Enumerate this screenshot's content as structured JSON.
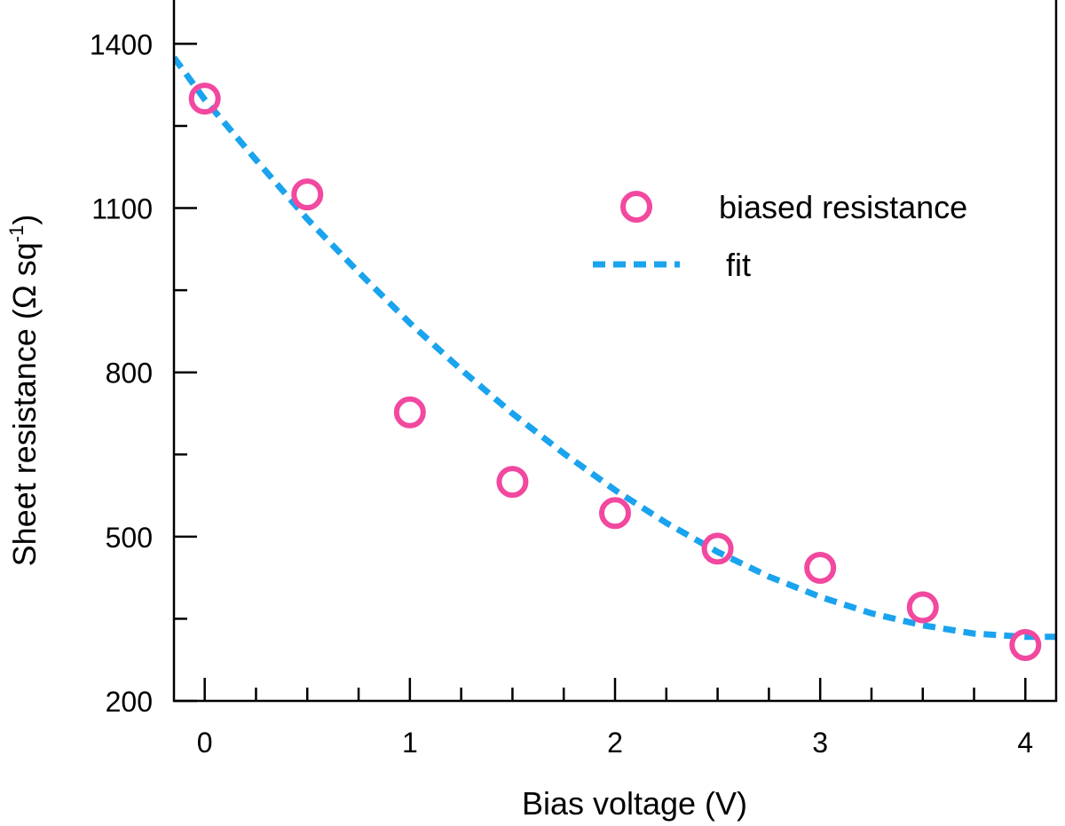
{
  "chart_data": {
    "type": "scatter",
    "title": "",
    "xlabel": "Bias voltage (V)",
    "ylabel_main": "Sheet resistance (Ω sq",
    "ylabel_sup": "-1",
    "ylabel_close": ")",
    "xlim": [
      -0.15,
      4.15
    ],
    "ylim": [
      200,
      1480
    ],
    "xticks": [
      0,
      1,
      2,
      3,
      4
    ],
    "xtick_labels": [
      "0",
      "1",
      "2",
      "3",
      "4"
    ],
    "xminor": [
      0.5,
      1.5,
      2.5,
      3.5
    ],
    "yticks": [
      200,
      500,
      800,
      1100,
      1400
    ],
    "ytick_labels": [
      "200",
      "500",
      "800",
      "1100",
      "1400"
    ],
    "yminor": [
      350,
      650,
      950,
      1250
    ],
    "grid": false,
    "legend_position": "right-upper",
    "series": [
      {
        "name": "biased resistance",
        "kind": "markers",
        "marker": "open-circle",
        "color": "#f2489f",
        "x": [
          0,
          0.5,
          1,
          1.5,
          2,
          2.5,
          3,
          3.5,
          4
        ],
        "y": [
          1300,
          1125,
          727,
          600,
          543,
          478,
          443,
          371,
          302
        ]
      },
      {
        "name": "fit",
        "kind": "dashed-line",
        "color": "#1aa3ee",
        "x": [
          -0.15,
          0,
          0.25,
          0.5,
          0.75,
          1,
          1.25,
          1.5,
          1.75,
          2,
          2.25,
          2.5,
          2.75,
          3,
          3.25,
          3.5,
          3.75,
          4,
          4.15
        ],
        "y": [
          1375,
          1298,
          1188,
          1080,
          983,
          890,
          805,
          725,
          652,
          585,
          525,
          472,
          427,
          390,
          360,
          338,
          323,
          317,
          317
        ]
      }
    ]
  }
}
